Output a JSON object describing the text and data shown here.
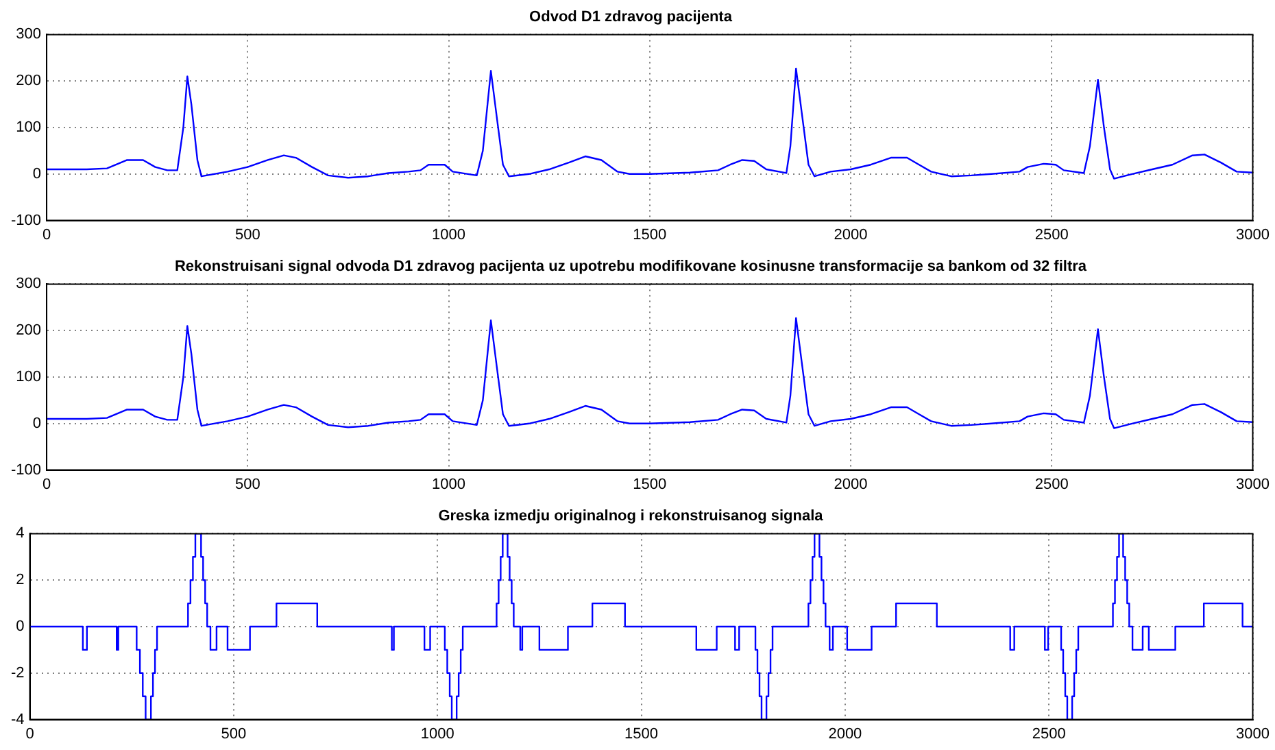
{
  "chart_data": [
    {
      "type": "line",
      "title": "Odvod D1 zdravog pacijenta",
      "color": "#0000ff",
      "grid": true,
      "xlim": [
        0,
        3000
      ],
      "xticks": [
        0,
        500,
        1000,
        1500,
        2000,
        2500,
        3000
      ],
      "ylim": [
        -100,
        300
      ],
      "yticks": [
        -100,
        0,
        100,
        200,
        300
      ],
      "x": [
        0,
        100,
        150,
        200,
        240,
        270,
        300,
        325,
        340,
        350,
        360,
        375,
        385,
        450,
        500,
        550,
        590,
        620,
        660,
        700,
        750,
        800,
        850,
        900,
        930,
        950,
        990,
        1010,
        1070,
        1085,
        1105,
        1120,
        1135,
        1150,
        1200,
        1250,
        1300,
        1340,
        1380,
        1420,
        1450,
        1500,
        1600,
        1670,
        1700,
        1730,
        1760,
        1790,
        1840,
        1850,
        1864,
        1880,
        1895,
        1910,
        1950,
        2000,
        2050,
        2100,
        2140,
        2170,
        2200,
        2250,
        2300,
        2350,
        2420,
        2440,
        2480,
        2510,
        2530,
        2580,
        2595,
        2615,
        2630,
        2645,
        2655,
        2700,
        2750,
        2800,
        2850,
        2880,
        2920,
        2960,
        3000
      ],
      "values": [
        10,
        10,
        12,
        30,
        30,
        15,
        8,
        8,
        100,
        210,
        150,
        30,
        -5,
        5,
        15,
        30,
        40,
        35,
        15,
        -3,
        -8,
        -5,
        2,
        5,
        8,
        20,
        20,
        5,
        -3,
        50,
        222,
        120,
        20,
        -5,
        0,
        10,
        25,
        38,
        30,
        5,
        0,
        0,
        3,
        8,
        20,
        30,
        28,
        10,
        2,
        60,
        227,
        120,
        20,
        -5,
        5,
        10,
        20,
        35,
        35,
        20,
        5,
        -5,
        -3,
        0,
        5,
        15,
        22,
        20,
        8,
        2,
        60,
        203,
        100,
        10,
        -10,
        0,
        10,
        20,
        40,
        42,
        25,
        5,
        3
      ]
    },
    {
      "type": "line",
      "title": "Rekonstruisani signal odvoda D1 zdravog pacijenta uz upotrebu modifikovane kosinusne transformacije sa bankom od 32 filtra",
      "color": "#0000ff",
      "grid": true,
      "xlim": [
        0,
        3000
      ],
      "xticks": [
        0,
        500,
        1000,
        1500,
        2000,
        2500,
        3000
      ],
      "ylim": [
        -100,
        300
      ],
      "yticks": [
        -100,
        0,
        100,
        200,
        300
      ],
      "x": [
        0,
        100,
        150,
        200,
        240,
        270,
        300,
        325,
        340,
        350,
        360,
        375,
        385,
        450,
        500,
        550,
        590,
        620,
        660,
        700,
        750,
        800,
        850,
        900,
        930,
        950,
        990,
        1010,
        1070,
        1085,
        1105,
        1120,
        1135,
        1150,
        1200,
        1250,
        1300,
        1340,
        1380,
        1420,
        1450,
        1500,
        1600,
        1670,
        1700,
        1730,
        1760,
        1790,
        1840,
        1850,
        1864,
        1880,
        1895,
        1910,
        1950,
        2000,
        2050,
        2100,
        2140,
        2170,
        2200,
        2250,
        2300,
        2350,
        2420,
        2440,
        2480,
        2510,
        2530,
        2580,
        2595,
        2615,
        2630,
        2645,
        2655,
        2700,
        2750,
        2800,
        2850,
        2880,
        2920,
        2960,
        3000
      ],
      "values": [
        10,
        10,
        12,
        30,
        30,
        15,
        8,
        8,
        100,
        210,
        150,
        30,
        -5,
        5,
        15,
        30,
        40,
        35,
        15,
        -3,
        -8,
        -5,
        2,
        5,
        8,
        20,
        20,
        5,
        -3,
        50,
        222,
        120,
        20,
        -5,
        0,
        10,
        25,
        38,
        30,
        5,
        0,
        0,
        3,
        8,
        20,
        30,
        28,
        10,
        2,
        60,
        227,
        120,
        20,
        -5,
        5,
        10,
        20,
        35,
        35,
        20,
        5,
        -5,
        -3,
        0,
        5,
        15,
        22,
        20,
        8,
        2,
        60,
        203,
        100,
        10,
        -10,
        0,
        10,
        20,
        40,
        42,
        25,
        5,
        3
      ]
    },
    {
      "type": "step",
      "title": "Greska izmedju originalnog i rekonstruisanog signala",
      "color": "#0000ff",
      "grid": true,
      "xlim": [
        0,
        3000
      ],
      "xticks": [
        0,
        500,
        1000,
        1500,
        2000,
        2500,
        3000
      ],
      "ylim": [
        -4,
        4
      ],
      "yticks": [
        -4,
        -2,
        0,
        2,
        4
      ],
      "x": [
        0,
        130,
        140,
        213,
        217,
        262,
        270,
        277,
        284,
        297,
        302,
        307,
        312,
        388,
        394,
        400,
        406,
        420,
        425,
        430,
        435,
        443,
        458,
        485,
        540,
        605,
        705,
        888,
        893,
        968,
        982,
        1018,
        1024,
        1030,
        1035,
        1047,
        1052,
        1057,
        1062,
        1145,
        1150,
        1155,
        1160,
        1172,
        1177,
        1182,
        1187,
        1203,
        1208,
        1250,
        1320,
        1380,
        1460,
        1635,
        1685,
        1730,
        1740,
        1780,
        1785,
        1790,
        1795,
        1807,
        1812,
        1817,
        1822,
        1910,
        1915,
        1920,
        1925,
        1937,
        1942,
        1947,
        1952,
        1962,
        1970,
        2005,
        2065,
        2125,
        2225,
        2405,
        2415,
        2490,
        2498,
        2530,
        2535,
        2540,
        2545,
        2557,
        2562,
        2567,
        2572,
        2657,
        2662,
        2667,
        2672,
        2682,
        2687,
        2692,
        2697,
        2705,
        2730,
        2745,
        2810,
        2880,
        2975,
        3000
      ],
      "values": [
        0,
        -1,
        0,
        -1,
        0,
        -1,
        -2,
        -3,
        -4,
        -3,
        -2,
        -1,
        0,
        1,
        2,
        3,
        4,
        3,
        2,
        1,
        0,
        -1,
        0,
        -1,
        0,
        1,
        0,
        -1,
        0,
        -1,
        0,
        -1,
        -2,
        -3,
        -4,
        -3,
        -2,
        -1,
        0,
        1,
        2,
        3,
        4,
        3,
        2,
        1,
        0,
        -1,
        0,
        -1,
        0,
        1,
        0,
        -1,
        0,
        -1,
        0,
        -1,
        -2,
        -3,
        -4,
        -3,
        -2,
        -1,
        0,
        1,
        2,
        3,
        4,
        3,
        2,
        1,
        0,
        -1,
        0,
        -1,
        0,
        1,
        0,
        -1,
        0,
        -1,
        0,
        -1,
        -2,
        -3,
        -4,
        -3,
        -2,
        -1,
        0,
        1,
        2,
        3,
        4,
        3,
        2,
        1,
        0,
        -1,
        0,
        -1,
        0,
        1,
        0,
        0
      ]
    }
  ]
}
